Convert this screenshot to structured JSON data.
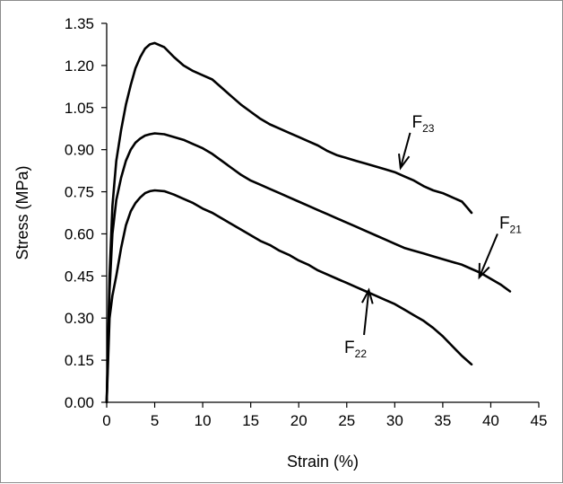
{
  "chart_data": {
    "type": "line",
    "title": "",
    "xlabel": "Strain (%)",
    "ylabel": "Stress (MPa)",
    "xlim": [
      0,
      45
    ],
    "ylim": [
      0,
      1.35
    ],
    "x_ticks": [
      0,
      5,
      10,
      15,
      20,
      25,
      30,
      35,
      40,
      45
    ],
    "x_tick_labels": [
      "0",
      "5",
      "10",
      "15",
      "20",
      "25",
      "30",
      "35",
      "40",
      "45"
    ],
    "y_ticks": [
      0,
      0.15,
      0.3,
      0.45,
      0.6,
      0.75,
      0.9,
      1.05,
      1.2,
      1.35
    ],
    "y_tick_labels": [
      "0.00",
      "0.15",
      "0.30",
      "0.45",
      "0.60",
      "0.75",
      "0.90",
      "1.05",
      "1.20",
      "1.35"
    ],
    "grid": false,
    "legend": "none",
    "line_color": "#000000",
    "series": [
      {
        "name": "F23",
        "x": [
          0,
          0.3,
          0.6,
          1,
          1.5,
          2,
          2.5,
          3,
          3.5,
          4,
          4.5,
          5,
          6,
          7,
          8,
          9,
          10,
          11,
          12,
          13,
          14,
          15,
          16,
          17,
          18,
          19,
          20,
          21,
          22,
          23,
          24,
          25,
          26,
          27,
          28,
          29,
          30,
          31,
          32,
          33,
          34,
          35,
          36,
          37,
          37.5,
          38
        ],
        "y": [
          0,
          0.45,
          0.7,
          0.86,
          0.97,
          1.06,
          1.13,
          1.19,
          1.23,
          1.26,
          1.275,
          1.28,
          1.265,
          1.23,
          1.2,
          1.18,
          1.165,
          1.15,
          1.12,
          1.09,
          1.06,
          1.035,
          1.01,
          0.99,
          0.975,
          0.96,
          0.945,
          0.93,
          0.915,
          0.895,
          0.88,
          0.87,
          0.86,
          0.85,
          0.84,
          0.83,
          0.82,
          0.805,
          0.79,
          0.77,
          0.755,
          0.745,
          0.73,
          0.715,
          0.695,
          0.675
        ]
      },
      {
        "name": "F21",
        "x": [
          0,
          0.3,
          0.6,
          1,
          1.5,
          2,
          2.5,
          3,
          3.5,
          4,
          4.5,
          5,
          6,
          7,
          8,
          9,
          10,
          11,
          12,
          13,
          14,
          15,
          16,
          17,
          18,
          19,
          20,
          21,
          22,
          23,
          24,
          25,
          26,
          27,
          28,
          29,
          30,
          31,
          32,
          33,
          34,
          35,
          36,
          37,
          38,
          39,
          40,
          41,
          42
        ],
        "y": [
          0,
          0.4,
          0.6,
          0.72,
          0.8,
          0.86,
          0.9,
          0.925,
          0.94,
          0.95,
          0.955,
          0.958,
          0.955,
          0.945,
          0.935,
          0.92,
          0.905,
          0.885,
          0.86,
          0.835,
          0.81,
          0.79,
          0.775,
          0.76,
          0.745,
          0.73,
          0.715,
          0.7,
          0.685,
          0.67,
          0.655,
          0.64,
          0.625,
          0.61,
          0.595,
          0.58,
          0.565,
          0.55,
          0.54,
          0.53,
          0.52,
          0.51,
          0.5,
          0.49,
          0.475,
          0.46,
          0.44,
          0.42,
          0.395
        ]
      },
      {
        "name": "F22",
        "x": [
          0,
          0.3,
          0.6,
          1,
          1.5,
          2,
          2.5,
          3,
          3.5,
          4,
          4.5,
          5,
          6,
          7,
          8,
          9,
          10,
          11,
          12,
          13,
          14,
          15,
          16,
          17,
          18,
          19,
          20,
          21,
          22,
          23,
          24,
          25,
          26,
          27,
          28,
          29,
          30,
          31,
          32,
          33,
          34,
          35,
          36,
          37,
          38
        ],
        "y": [
          0,
          0.3,
          0.38,
          0.45,
          0.55,
          0.63,
          0.68,
          0.71,
          0.73,
          0.745,
          0.752,
          0.755,
          0.752,
          0.74,
          0.725,
          0.71,
          0.69,
          0.675,
          0.655,
          0.635,
          0.615,
          0.595,
          0.575,
          0.56,
          0.54,
          0.525,
          0.505,
          0.49,
          0.47,
          0.455,
          0.44,
          0.425,
          0.41,
          0.395,
          0.38,
          0.365,
          0.35,
          0.33,
          0.31,
          0.29,
          0.265,
          0.235,
          0.2,
          0.165,
          0.135
        ]
      }
    ],
    "annotations": [
      {
        "main": "F",
        "sub": "23",
        "arrow_from": [
          31.6,
          0.96
        ],
        "arrow_to": [
          30.6,
          0.835
        ]
      },
      {
        "main": "F",
        "sub": "21",
        "arrow_from": [
          40.7,
          0.6
        ],
        "arrow_to": [
          38.8,
          0.445
        ]
      },
      {
        "main": "F",
        "sub": "22",
        "arrow_from": [
          26.8,
          0.24
        ],
        "arrow_to": [
          27.3,
          0.4
        ]
      }
    ]
  }
}
